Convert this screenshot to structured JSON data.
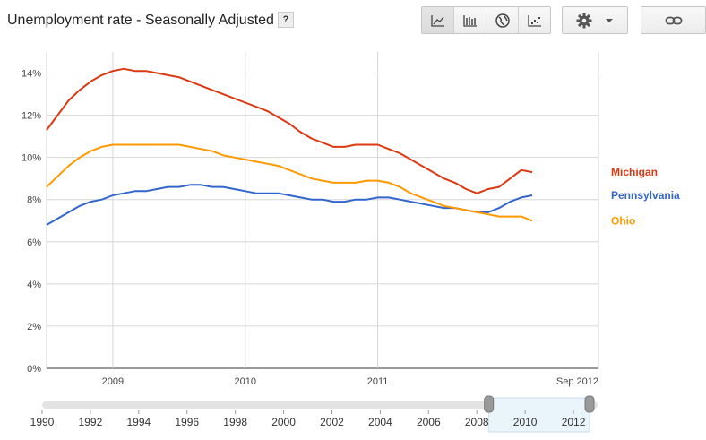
{
  "page_title": "Unemployment rate - Seasonally Adjusted",
  "help_label": "?",
  "toolbar": {
    "icons": [
      "line-chart-icon",
      "bar-chart-icon",
      "globe-icon",
      "scatter-icon"
    ],
    "settings_icon": "gear-icon",
    "dropdown_icon": "caret-down-icon",
    "link_icon": "link-icon"
  },
  "chart_data": {
    "type": "line",
    "title": "Unemployment rate - Seasonally Adjusted",
    "xlabel": "",
    "ylabel": "",
    "ylim": [
      0,
      15
    ],
    "y_ticks": [
      0,
      2,
      4,
      6,
      8,
      10,
      12,
      14
    ],
    "y_tick_labels": [
      "0%",
      "2%",
      "4%",
      "6%",
      "8%",
      "10%",
      "12%",
      "14%"
    ],
    "x_start": "2008-07",
    "x_end": "2012-09",
    "x_ticks": [
      {
        "date": "2009-01",
        "label": "2009"
      },
      {
        "date": "2010-01",
        "label": "2010"
      },
      {
        "date": "2011-01",
        "label": "2011"
      },
      {
        "date": "2012-09",
        "label": "Sep 2012"
      }
    ],
    "grid": true,
    "legend": "right, labels at line ends",
    "series": [
      {
        "name": "Michigan",
        "color": "#dc3912",
        "values": [
          11.3,
          12.0,
          12.7,
          13.2,
          13.6,
          13.9,
          14.1,
          14.2,
          14.1,
          14.1,
          14.0,
          13.9,
          13.8,
          13.6,
          13.4,
          13.2,
          13.0,
          12.8,
          12.6,
          12.4,
          12.2,
          11.9,
          11.6,
          11.2,
          10.9,
          10.7,
          10.5,
          10.5,
          10.6,
          10.6,
          10.6,
          10.4,
          10.2,
          9.9,
          9.6,
          9.3,
          9.0,
          8.8,
          8.5,
          8.3,
          8.5,
          8.6,
          9.0,
          9.4,
          9.3
        ]
      },
      {
        "name": "Pennsylvania",
        "color": "#3366cc",
        "values": [
          6.8,
          7.1,
          7.4,
          7.7,
          7.9,
          8.0,
          8.2,
          8.3,
          8.4,
          8.4,
          8.5,
          8.6,
          8.6,
          8.7,
          8.7,
          8.6,
          8.6,
          8.5,
          8.4,
          8.3,
          8.3,
          8.3,
          8.2,
          8.1,
          8.0,
          8.0,
          7.9,
          7.9,
          8.0,
          8.0,
          8.1,
          8.1,
          8.0,
          7.9,
          7.8,
          7.7,
          7.6,
          7.6,
          7.5,
          7.4,
          7.4,
          7.6,
          7.9,
          8.1,
          8.2
        ]
      },
      {
        "name": "Ohio",
        "color": "#ff9900",
        "values": [
          8.6,
          9.1,
          9.6,
          10.0,
          10.3,
          10.5,
          10.6,
          10.6,
          10.6,
          10.6,
          10.6,
          10.6,
          10.6,
          10.5,
          10.4,
          10.3,
          10.1,
          10.0,
          9.9,
          9.8,
          9.7,
          9.6,
          9.4,
          9.2,
          9.0,
          8.9,
          8.8,
          8.8,
          8.8,
          8.9,
          8.9,
          8.8,
          8.6,
          8.3,
          8.1,
          7.9,
          7.7,
          7.6,
          7.5,
          7.4,
          7.3,
          7.2,
          7.2,
          7.2,
          7.0
        ]
      }
    ]
  },
  "timeline": {
    "x_start": 1990,
    "x_end": 2013,
    "labels": [
      "1990",
      "1992",
      "1994",
      "1996",
      "1998",
      "2000",
      "2002",
      "2004",
      "2006",
      "2008",
      "2010",
      "2012"
    ],
    "window_start": "2008-07",
    "window_end": "2012-09"
  }
}
